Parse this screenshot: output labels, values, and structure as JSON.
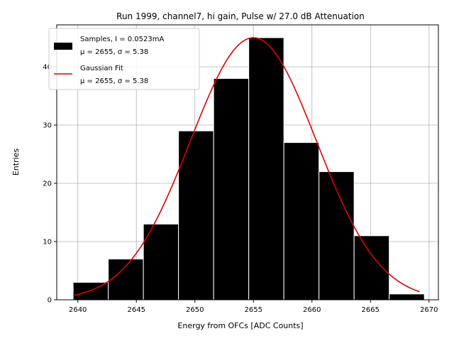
{
  "chart_data": {
    "type": "bar",
    "title": "Run 1999, channel7, hi gain, Pulse w/ 27.0 dB Attenuation",
    "xlabel": "Energy from OFCs [ADC Counts]",
    "ylabel": "Entries",
    "xlim": [
      2638.2,
      2670.8
    ],
    "ylim": [
      0,
      47.2
    ],
    "grid": true,
    "x_ticks": [
      2640,
      2645,
      2650,
      2655,
      2660,
      2665,
      2670
    ],
    "y_ticks": [
      0,
      10,
      20,
      30,
      40
    ],
    "legend_placement": "top-left",
    "colors": {
      "bars": "#000000",
      "bar_edge": "#ffffff",
      "fit": "#e00000",
      "grid": "#b0b0b0"
    },
    "bins": [
      {
        "x0": 2639.6,
        "x1": 2642.6,
        "value": 3
      },
      {
        "x0": 2642.6,
        "x1": 2645.6,
        "value": 7
      },
      {
        "x0": 2645.6,
        "x1": 2648.6,
        "value": 13
      },
      {
        "x0": 2648.6,
        "x1": 2651.6,
        "value": 29
      },
      {
        "x0": 2651.6,
        "x1": 2654.6,
        "value": 38
      },
      {
        "x0": 2654.6,
        "x1": 2657.6,
        "value": 45
      },
      {
        "x0": 2657.6,
        "x1": 2660.6,
        "value": 27
      },
      {
        "x0": 2660.6,
        "x1": 2663.6,
        "value": 22
      },
      {
        "x0": 2663.6,
        "x1": 2666.6,
        "value": 11
      },
      {
        "x0": 2666.6,
        "x1": 2669.6,
        "value": 1
      }
    ],
    "fit": {
      "mu": 2655,
      "sigma": 5.38,
      "amplitude": 45,
      "x_range": [
        2639.6,
        2669.2
      ]
    },
    "series": [
      {
        "name": "Samples, I = 0.0523mA",
        "stats": "μ = 2655, σ = 5.38"
      },
      {
        "name": "Gaussian Fit",
        "stats": "μ = 2655, σ = 5.38"
      }
    ]
  }
}
